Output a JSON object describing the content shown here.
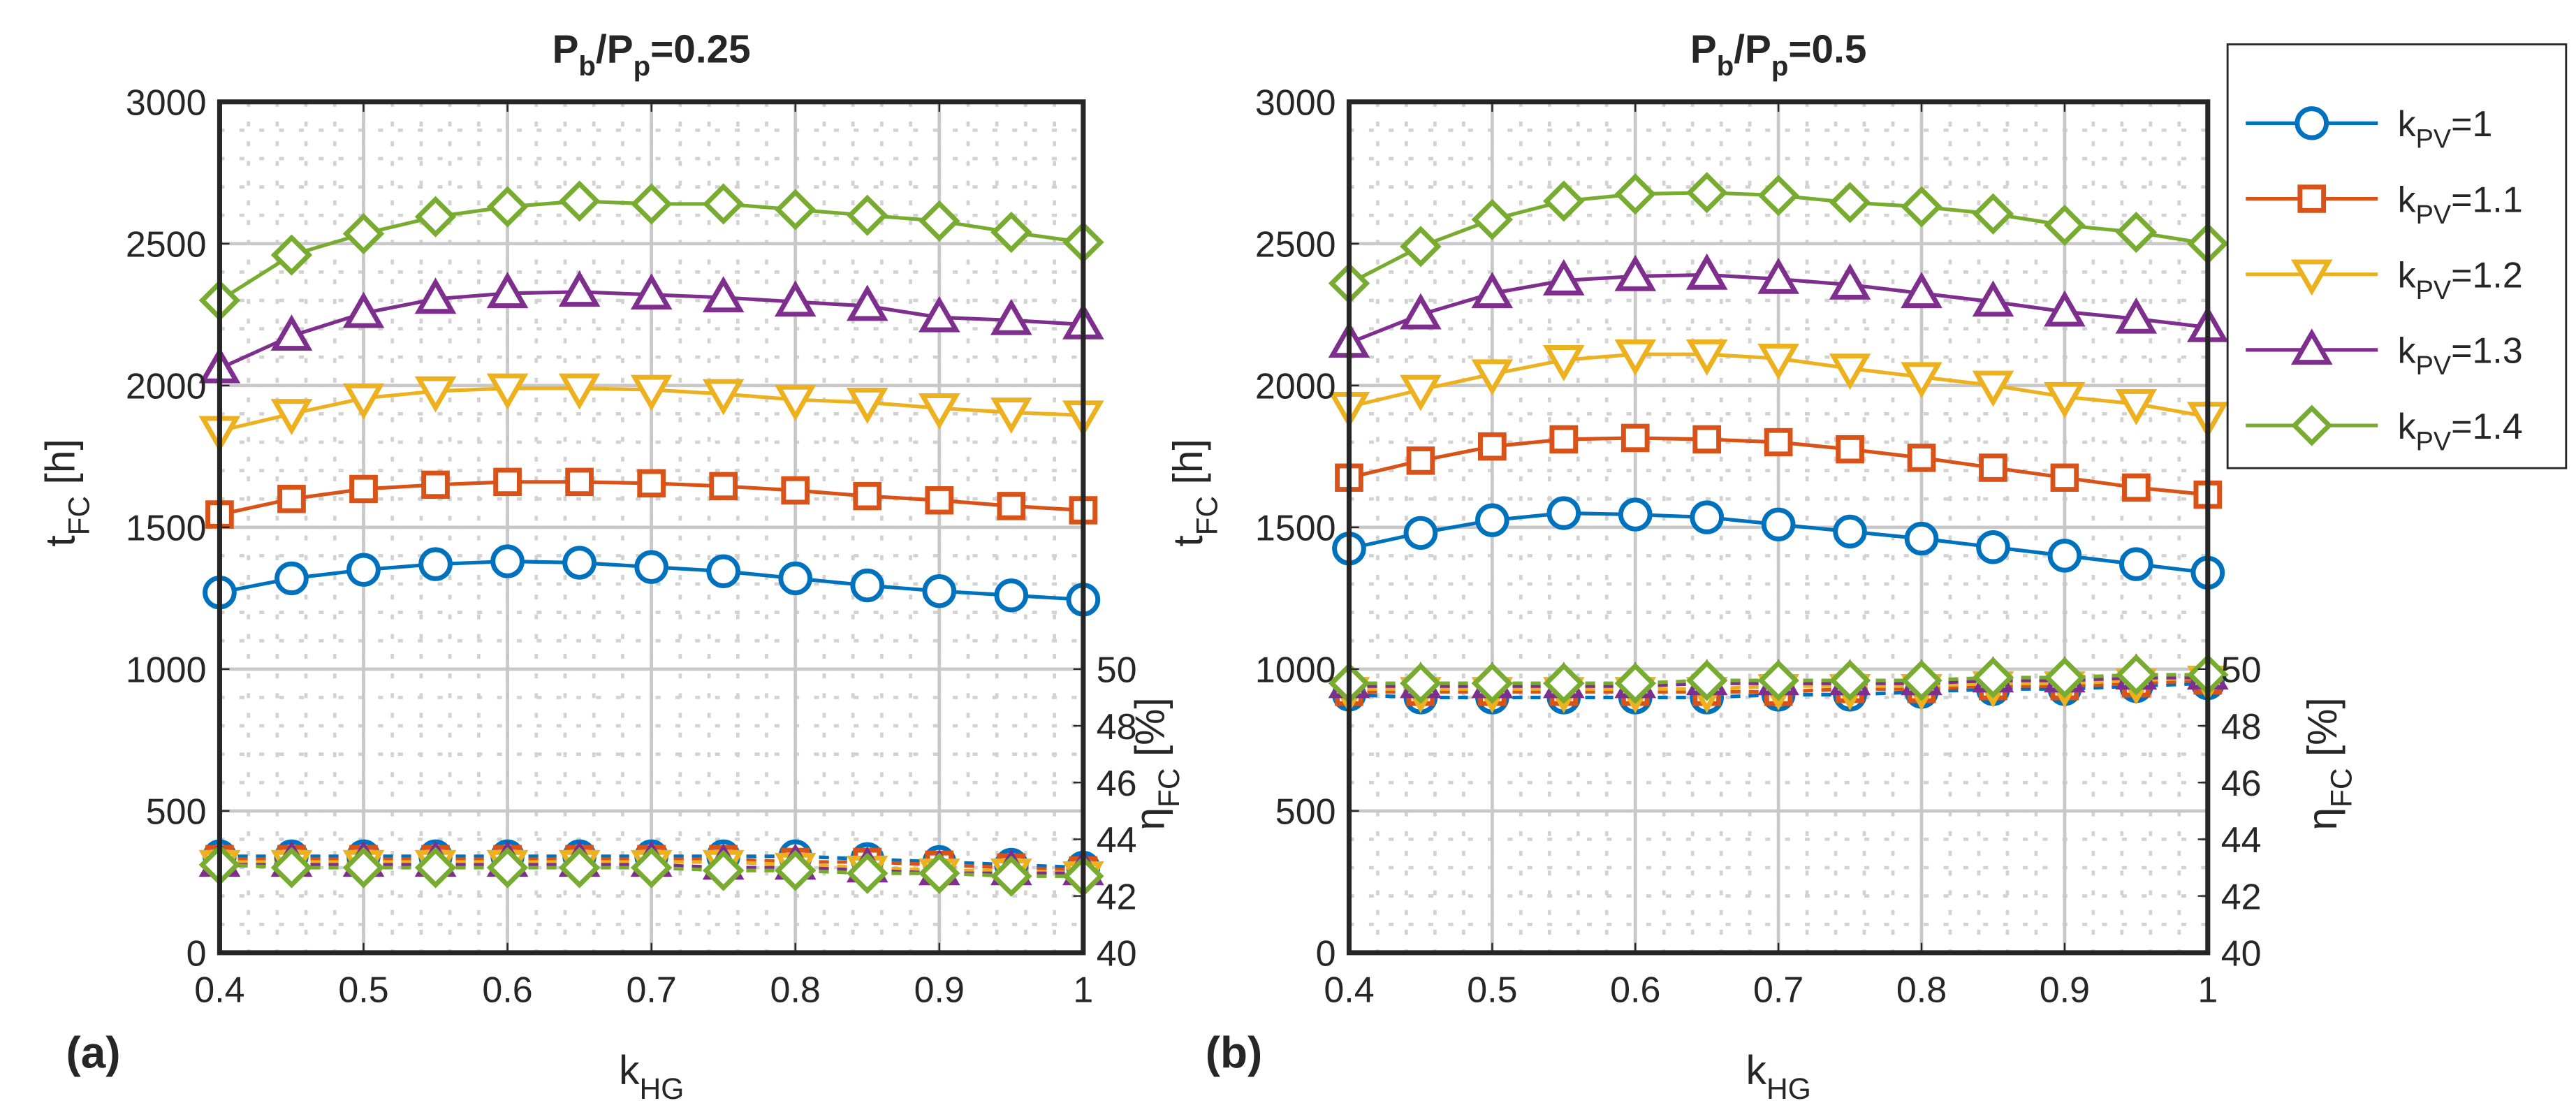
{
  "chart_data": [
    {
      "type": "line",
      "panel_label": "(a)",
      "title": {
        "base": "P",
        "sub1": "b",
        "mid": "/P",
        "sub2": "p",
        "tail": "=0.25"
      },
      "xlabel": {
        "base": "k",
        "sub": "HG"
      },
      "ylabel": {
        "base": "t",
        "sub": "FC",
        "tail": " [h]"
      },
      "y2label": {
        "base": "η",
        "sub": "FC",
        "tail": " [%]"
      },
      "xlim": [
        0.4,
        1
      ],
      "ylim": [
        0,
        3000
      ],
      "y2lim": [
        40,
        70
      ],
      "y2_visible_ticks": [
        40,
        42,
        44,
        46,
        48,
        50
      ],
      "xticks": [
        "0.4",
        "0.5",
        "0.6",
        "0.7",
        "0.8",
        "0.9",
        "1"
      ],
      "yticks": [
        "0",
        "500",
        "1000",
        "1500",
        "2000",
        "2500",
        "3000"
      ],
      "x": [
        0.4,
        0.45,
        0.5,
        0.55,
        0.6,
        0.65,
        0.7,
        0.75,
        0.8,
        0.85,
        0.9,
        0.95,
        1.0
      ],
      "series": [
        {
          "name": "kPV=1",
          "values": [
            1270,
            1320,
            1350,
            1370,
            1380,
            1375,
            1360,
            1345,
            1320,
            1295,
            1275,
            1260,
            1245
          ]
        },
        {
          "name": "kPV=1.1",
          "values": [
            1545,
            1600,
            1635,
            1650,
            1660,
            1660,
            1655,
            1645,
            1630,
            1610,
            1595,
            1575,
            1560
          ]
        },
        {
          "name": "kPV=1.2",
          "values": [
            1840,
            1900,
            1955,
            1980,
            1990,
            1990,
            1985,
            1970,
            1950,
            1940,
            1920,
            1905,
            1895
          ]
        },
        {
          "name": "kPV=1.3",
          "values": [
            2060,
            2175,
            2255,
            2305,
            2325,
            2330,
            2320,
            2310,
            2295,
            2280,
            2240,
            2230,
            2215
          ]
        },
        {
          "name": "kPV=1.4",
          "values": [
            2300,
            2460,
            2535,
            2595,
            2630,
            2650,
            2640,
            2640,
            2620,
            2600,
            2580,
            2540,
            2505
          ]
        }
      ],
      "series_eta": [
        {
          "name": "kPV=1",
          "values": [
            43.4,
            43.4,
            43.4,
            43.4,
            43.4,
            43.4,
            43.4,
            43.4,
            43.4,
            43.3,
            43.2,
            43.1,
            43.0
          ]
        },
        {
          "name": "kPV=1.1",
          "values": [
            43.3,
            43.3,
            43.3,
            43.3,
            43.3,
            43.3,
            43.3,
            43.3,
            43.2,
            43.2,
            43.1,
            43.0,
            42.9
          ]
        },
        {
          "name": "kPV=1.2",
          "values": [
            43.2,
            43.2,
            43.2,
            43.2,
            43.2,
            43.2,
            43.2,
            43.2,
            43.1,
            43.0,
            42.9,
            42.9,
            42.8
          ]
        },
        {
          "name": "kPV=1.3",
          "values": [
            43.1,
            43.1,
            43.1,
            43.1,
            43.1,
            43.1,
            43.1,
            43.0,
            43.0,
            42.9,
            42.8,
            42.8,
            42.8
          ]
        },
        {
          "name": "kPV=1.4",
          "values": [
            43.1,
            43.0,
            43.0,
            43.0,
            43.0,
            43.0,
            43.0,
            42.9,
            42.9,
            42.8,
            42.8,
            42.7,
            42.7
          ]
        }
      ]
    },
    {
      "type": "line",
      "panel_label": "(b)",
      "title": {
        "base": "P",
        "sub1": "b",
        "mid": "/P",
        "sub2": "p",
        "tail": "=0.5"
      },
      "xlabel": {
        "base": "k",
        "sub": "HG"
      },
      "ylabel": {
        "base": "t",
        "sub": "FC",
        "tail": " [h]"
      },
      "y2label": {
        "base": "η",
        "sub": "FC",
        "tail": " [%]"
      },
      "xlim": [
        0.4,
        1
      ],
      "ylim": [
        0,
        3000
      ],
      "y2lim": [
        40,
        70
      ],
      "y2_visible_ticks": [
        40,
        42,
        44,
        46,
        48,
        50
      ],
      "xticks": [
        "0.4",
        "0.5",
        "0.6",
        "0.7",
        "0.8",
        "0.9",
        "1"
      ],
      "yticks": [
        "0",
        "500",
        "1000",
        "1500",
        "2000",
        "2500",
        "3000"
      ],
      "x": [
        0.4,
        0.45,
        0.5,
        0.55,
        0.6,
        0.65,
        0.7,
        0.75,
        0.8,
        0.85,
        0.9,
        0.95,
        1.0
      ],
      "series": [
        {
          "name": "kPV=1",
          "values": [
            1425,
            1480,
            1525,
            1550,
            1545,
            1535,
            1510,
            1485,
            1460,
            1430,
            1400,
            1370,
            1340
          ]
        },
        {
          "name": "kPV=1.1",
          "values": [
            1675,
            1735,
            1785,
            1810,
            1815,
            1810,
            1800,
            1775,
            1745,
            1710,
            1675,
            1640,
            1615
          ]
        },
        {
          "name": "kPV=1.2",
          "values": [
            1925,
            1985,
            2040,
            2090,
            2110,
            2110,
            2095,
            2060,
            2030,
            2000,
            1960,
            1935,
            1890
          ]
        },
        {
          "name": "kPV=1.3",
          "values": [
            2150,
            2250,
            2325,
            2370,
            2385,
            2390,
            2375,
            2355,
            2325,
            2295,
            2260,
            2235,
            2205
          ]
        },
        {
          "name": "kPV=1.4",
          "values": [
            2360,
            2490,
            2585,
            2650,
            2675,
            2680,
            2670,
            2645,
            2630,
            2605,
            2565,
            2540,
            2500
          ]
        }
      ],
      "series_eta": [
        {
          "name": "kPV=1",
          "values": [
            49.1,
            49.0,
            49.0,
            49.0,
            49.0,
            49.0,
            49.1,
            49.1,
            49.2,
            49.3,
            49.3,
            49.4,
            49.5
          ]
        },
        {
          "name": "kPV=1.1",
          "values": [
            49.2,
            49.2,
            49.2,
            49.2,
            49.2,
            49.2,
            49.2,
            49.3,
            49.3,
            49.4,
            49.4,
            49.5,
            49.6
          ]
        },
        {
          "name": "kPV=1.2",
          "values": [
            49.3,
            49.3,
            49.3,
            49.3,
            49.3,
            49.3,
            49.4,
            49.4,
            49.4,
            49.5,
            49.5,
            49.6,
            49.7
          ]
        },
        {
          "name": "kPV=1.3",
          "values": [
            49.4,
            49.4,
            49.4,
            49.4,
            49.4,
            49.5,
            49.5,
            49.5,
            49.5,
            49.6,
            49.6,
            49.7,
            49.7
          ]
        },
        {
          "name": "kPV=1.4",
          "values": [
            49.5,
            49.5,
            49.5,
            49.5,
            49.5,
            49.6,
            49.6,
            49.6,
            49.6,
            49.7,
            49.7,
            49.8,
            49.8
          ]
        }
      ]
    }
  ],
  "legend": {
    "entries": [
      {
        "base": "k",
        "sub": "PV",
        "tail": "=1",
        "color": "#0072BD",
        "marker": "circle"
      },
      {
        "base": "k",
        "sub": "PV",
        "tail": "=1.1",
        "color": "#D95319",
        "marker": "square"
      },
      {
        "base": "k",
        "sub": "PV",
        "tail": "=1.2",
        "color": "#EDB120",
        "marker": "triangle-down"
      },
      {
        "base": "k",
        "sub": "PV",
        "tail": "=1.3",
        "color": "#7E2F8E",
        "marker": "triangle-up"
      },
      {
        "base": "k",
        "sub": "PV",
        "tail": "=1.4",
        "color": "#77AC30",
        "marker": "diamond"
      }
    ]
  }
}
